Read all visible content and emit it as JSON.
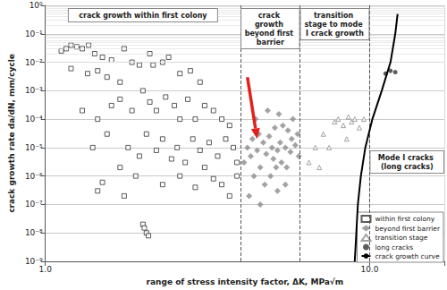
{
  "chart_data": {
    "type": "scatter",
    "x_label": "range of stress intensity factor, ΔK, MPa√m",
    "y_label": "crack growth rate da/dN, mm/cycle",
    "log": true,
    "grid": true,
    "legend": "lower right",
    "xlim": [
      1,
      17
    ],
    "xticks": [
      {
        "value": 1,
        "label": "1.0"
      },
      {
        "value": 10,
        "label": "10.0"
      }
    ],
    "ylim": [
      1e-09,
      1
    ],
    "yticks": [
      {
        "value": 1e-09,
        "label": "10⁻⁹"
      },
      {
        "value": 1e-08,
        "label": "10⁻⁸"
      },
      {
        "value": 1e-07,
        "label": "10⁻⁷"
      },
      {
        "value": 1e-06,
        "label": "10⁻⁶"
      },
      {
        "value": 1e-05,
        "label": "10⁻⁵"
      },
      {
        "value": 0.0001,
        "label": "10⁻⁴"
      },
      {
        "value": 0.001,
        "label": "10⁻³"
      },
      {
        "value": 0.01,
        "label": "10⁻²"
      },
      {
        "value": 0.1,
        "label": "10⁻¹"
      },
      {
        "value": 1,
        "label": "10⁰"
      }
    ],
    "regions": [
      {
        "label": "crack growth within first colony",
        "from": 1,
        "to": 4.0
      },
      {
        "label": "crack growth beyond first barrier",
        "from": 4.0,
        "to": 6.1
      },
      {
        "label": "transition stage to mode I crack growth",
        "from": 6.1,
        "to": 10.0
      },
      {
        "label": "Mode I cracks (long cracks)",
        "from": 10.0,
        "to": 17
      }
    ],
    "annotations": [
      {
        "type": "arrow",
        "from": [
          4.2,
          0.003
        ],
        "to": [
          4.5,
          2e-05
        ],
        "color": "#e3211c"
      }
    ],
    "series": [
      {
        "name": "within first colony",
        "type": "scatter",
        "marker": "square_open",
        "color": "#333333",
        "x": [
          1.12,
          1.16,
          1.2,
          1.25,
          1.3,
          1.36,
          1.42,
          1.5,
          1.6,
          1.75,
          1.2,
          1.35,
          1.45,
          1.55,
          1.7,
          1.85,
          1.95,
          2.1,
          2.15,
          2.3,
          2.4,
          2.6,
          2.8,
          3.0,
          1.3,
          1.45,
          1.6,
          1.7,
          1.85,
          2.0,
          2.1,
          2.2,
          2.35,
          2.5,
          2.6,
          2.75,
          2.9,
          3.1,
          3.3,
          3.5,
          3.7,
          1.4,
          1.55,
          1.7,
          1.8,
          1.95,
          2.05,
          2.2,
          2.3,
          2.45,
          2.55,
          2.7,
          2.85,
          3.0,
          3.2,
          3.4,
          3.6,
          3.8,
          3.9,
          1.45,
          1.5,
          1.75,
          1.9,
          2.0,
          2.02,
          2.05,
          2.08,
          2.3,
          2.6,
          2.9,
          3.1,
          3.3,
          3.5,
          3.7,
          3.9
        ],
        "values": [
          0.025,
          0.03,
          0.04,
          0.035,
          0.03,
          0.04,
          0.02,
          0.015,
          0.012,
          0.03,
          0.006,
          0.004,
          0.005,
          0.003,
          0.002,
          0.01,
          0.008,
          0.02,
          0.008,
          0.01,
          0.015,
          0.004,
          0.005,
          0.002,
          0.0002,
          0.0001,
          0.0003,
          0.0005,
          0.0002,
          0.001,
          0.0004,
          0.0002,
          0.0006,
          0.0003,
          0.0001,
          0.0005,
          0.0001,
          0.0003,
          0.0002,
          0.0001,
          6e-05,
          1e-05,
          3e-05,
          2e-06,
          1e-05,
          5e-06,
          3e-05,
          8e-06,
          2e-05,
          4e-06,
          1e-05,
          3e-06,
          2e-05,
          8e-06,
          1.5e-05,
          5e-06,
          2e-05,
          1e-05,
          3e-06,
          3e-07,
          6e-07,
          2e-07,
          1e-06,
          2e-08,
          1.5e-08,
          1e-08,
          8e-09,
          5e-07,
          1e-06,
          4e-07,
          2e-06,
          8e-07,
          5e-07,
          2e-07,
          1e-06
        ]
      },
      {
        "name": "beyond first barrier",
        "type": "scatter",
        "marker": "diamond",
        "color": "#8c8c8c",
        "x": [
          4.1,
          4.2,
          4.3,
          4.35,
          4.4,
          4.5,
          4.55,
          4.6,
          4.7,
          4.75,
          4.8,
          4.9,
          4.95,
          5.0,
          5.05,
          5.1,
          5.15,
          5.2,
          5.3,
          5.35,
          5.4,
          5.5,
          5.55,
          5.6,
          5.7,
          5.75,
          5.8,
          5.9,
          6.0,
          6.05,
          4.25,
          4.6,
          5.2,
          5.5,
          4.45,
          4.85,
          5.25
        ],
        "values": [
          3e-06,
          1e-05,
          5e-06,
          2e-05,
          1e-06,
          8e-06,
          3e-05,
          2e-06,
          1.5e-05,
          5e-07,
          6e-06,
          2.5e-05,
          1e-06,
          1e-05,
          4e-06,
          5e-05,
          2e-06,
          8e-06,
          1.5e-05,
          3e-06,
          6e-05,
          1e-05,
          2e-06,
          4e-05,
          7e-06,
          2e-05,
          0.0001,
          1.2e-05,
          3e-05,
          5e-06,
          2e-07,
          1e-07,
          3e-07,
          5e-07,
          0.0001,
          0.0002,
          0.00015
        ]
      },
      {
        "name": "transition stage",
        "type": "scatter",
        "marker": "triangle_open",
        "color": "#8c8c8c",
        "x": [
          6.5,
          6.8,
          7.2,
          7.5,
          7.8,
          8.0,
          8.3,
          8.6,
          8.8,
          9.0,
          9.3,
          9.6,
          7.0,
          8.5
        ],
        "values": [
          3e-06,
          1e-05,
          3e-05,
          1e-05,
          8e-05,
          0.0001,
          6e-05,
          0.00012,
          8e-05,
          0.0001,
          5e-05,
          0.0001,
          2e-06,
          2e-05
        ]
      },
      {
        "name": "long cracks",
        "type": "scatter",
        "marker": "circle",
        "color": "#333333",
        "x": [
          11.2,
          11.6,
          12.0
        ],
        "values": [
          0.004,
          0.005,
          0.0045
        ]
      },
      {
        "name": "crack growth curve",
        "type": "line",
        "line_style": "solid",
        "color": "#000000",
        "x": [
          9.0,
          9.1,
          9.2,
          9.4,
          9.7,
          10.2,
          10.9,
          11.6,
          12.0,
          12.2
        ],
        "values": [
          1e-09,
          1e-08,
          1e-07,
          1e-06,
          1e-05,
          0.0001,
          0.001,
          0.01,
          0.1,
          0.5
        ]
      }
    ]
  }
}
